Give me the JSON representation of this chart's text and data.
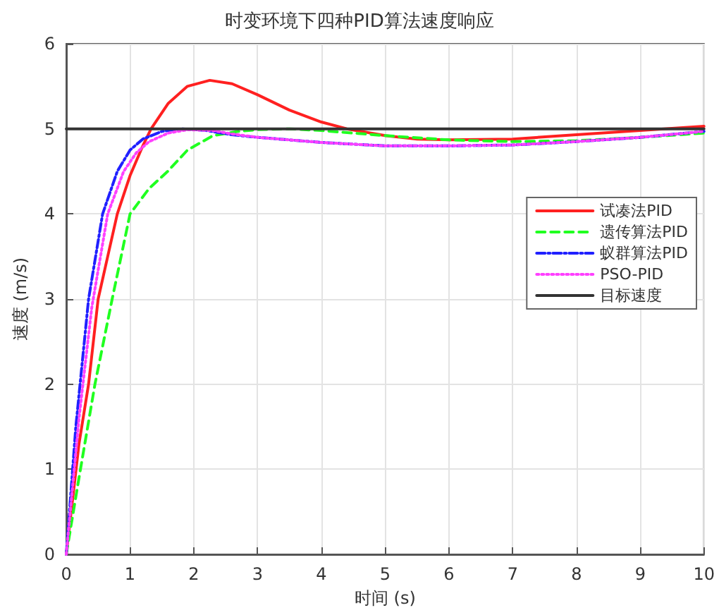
{
  "chart_data": {
    "type": "line",
    "title": "时变环境下四种PID算法速度响应",
    "xlabel": "时间 (s)",
    "ylabel": "速度 (m/s)",
    "xlim": [
      0,
      10
    ],
    "xticks": [
      0,
      1,
      2,
      3,
      4,
      5,
      6,
      7,
      8,
      9,
      10
    ],
    "ylim": [
      0,
      6
    ],
    "yticks": [
      0,
      1,
      2,
      3,
      4,
      5,
      6
    ],
    "grid": true,
    "legend": "right",
    "marker": "none",
    "series": [
      {
        "name": "试凑法PID",
        "color": "#ff2020",
        "line_style": "solid",
        "x": [
          0,
          0.2,
          0.35,
          0.5,
          0.65,
          0.8,
          1.0,
          1.2,
          1.33,
          1.6,
          1.9,
          2.25,
          2.6,
          3.0,
          3.5,
          4.0,
          4.4,
          5.0,
          5.5,
          6.0,
          7.0,
          8.0,
          9.0,
          10
        ],
        "values": [
          0,
          1.3,
          2.0,
          3.0,
          3.5,
          4.0,
          4.45,
          4.8,
          5.0,
          5.3,
          5.5,
          5.57,
          5.53,
          5.4,
          5.22,
          5.08,
          5.0,
          4.92,
          4.88,
          4.87,
          4.88,
          4.93,
          4.98,
          5.03
        ]
      },
      {
        "name": "遗传算法PID",
        "color": "#20ff20",
        "line_style": "dashed",
        "x": [
          0,
          0.2,
          0.45,
          0.72,
          1.0,
          1.3,
          1.59,
          1.9,
          2.3,
          2.7,
          3.0,
          3.5,
          4.0,
          5.0,
          6.0,
          7.0,
          8.0,
          9.0,
          10
        ],
        "values": [
          0,
          0.9,
          2.0,
          3.0,
          4.0,
          4.3,
          4.5,
          4.75,
          4.92,
          4.97,
          4.99,
          5.0,
          4.98,
          4.92,
          4.87,
          4.85,
          4.86,
          4.9,
          4.95
        ]
      },
      {
        "name": "蚁群算法PID",
        "color": "#2020ff",
        "line_style": "dashdot",
        "x": [
          0,
          0.15,
          0.35,
          0.57,
          0.8,
          1.0,
          1.2,
          1.5,
          1.8,
          2.2,
          2.6,
          3.0,
          4.0,
          5.0,
          6.0,
          7.0,
          8.0,
          9.0,
          10
        ],
        "values": [
          0,
          1.5,
          3.0,
          4.0,
          4.5,
          4.75,
          4.88,
          4.97,
          5.0,
          4.98,
          4.93,
          4.9,
          4.84,
          4.8,
          4.8,
          4.81,
          4.85,
          4.9,
          4.97
        ]
      },
      {
        "name": "PSO-PID",
        "color": "#ff40ff",
        "line_style": "dotted",
        "x": [
          0,
          0.2,
          0.4,
          0.65,
          0.9,
          1.1,
          1.3,
          1.6,
          1.9,
          2.3,
          2.6,
          3.0,
          4.0,
          5.0,
          6.0,
          7.0,
          8.0,
          9.0,
          10
        ],
        "values": [
          0,
          1.6,
          2.9,
          4.0,
          4.5,
          4.72,
          4.85,
          4.95,
          4.99,
          4.98,
          4.94,
          4.9,
          4.84,
          4.8,
          4.8,
          4.81,
          4.85,
          4.9,
          4.97
        ]
      },
      {
        "name": "目标速度",
        "color": "#333333",
        "line_style": "solid",
        "x": [
          0,
          10
        ],
        "values": [
          5,
          5
        ]
      }
    ]
  }
}
